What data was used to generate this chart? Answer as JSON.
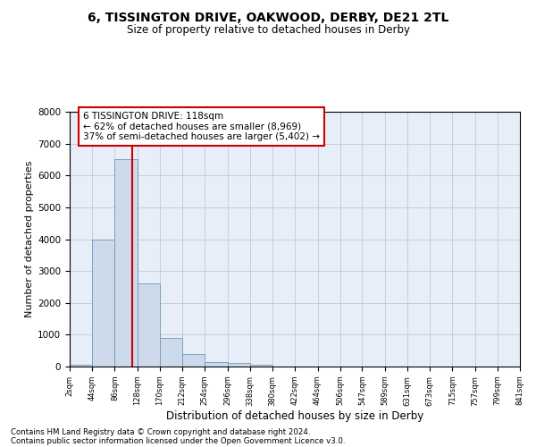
{
  "title1": "6, TISSINGTON DRIVE, OAKWOOD, DERBY, DE21 2TL",
  "title2": "Size of property relative to detached houses in Derby",
  "xlabel": "Distribution of detached houses by size in Derby",
  "ylabel": "Number of detached properties",
  "bin_edges": [
    2,
    44,
    86,
    128,
    170,
    212,
    254,
    296,
    338,
    380,
    422,
    464,
    506,
    547,
    589,
    631,
    673,
    715,
    757,
    799,
    841
  ],
  "bar_heights": [
    50,
    4000,
    6500,
    2600,
    900,
    400,
    150,
    100,
    50,
    0,
    0,
    0,
    0,
    0,
    0,
    0,
    0,
    0,
    0,
    0
  ],
  "bar_color": "#ccdaeb",
  "bar_edge_color": "#7098b8",
  "property_size": 118,
  "vline_color": "#cc0000",
  "annotation_text": "6 TISSINGTON DRIVE: 118sqm\n← 62% of detached houses are smaller (8,969)\n37% of semi-detached houses are larger (5,402) →",
  "annotation_box_color": "#cc0000",
  "ylim": [
    0,
    8000
  ],
  "yticks": [
    0,
    1000,
    2000,
    3000,
    4000,
    5000,
    6000,
    7000,
    8000
  ],
  "grid_color": "#c0c8d8",
  "bg_color": "#e8eef8",
  "footer1": "Contains HM Land Registry data © Crown copyright and database right 2024.",
  "footer2": "Contains public sector information licensed under the Open Government Licence v3.0."
}
